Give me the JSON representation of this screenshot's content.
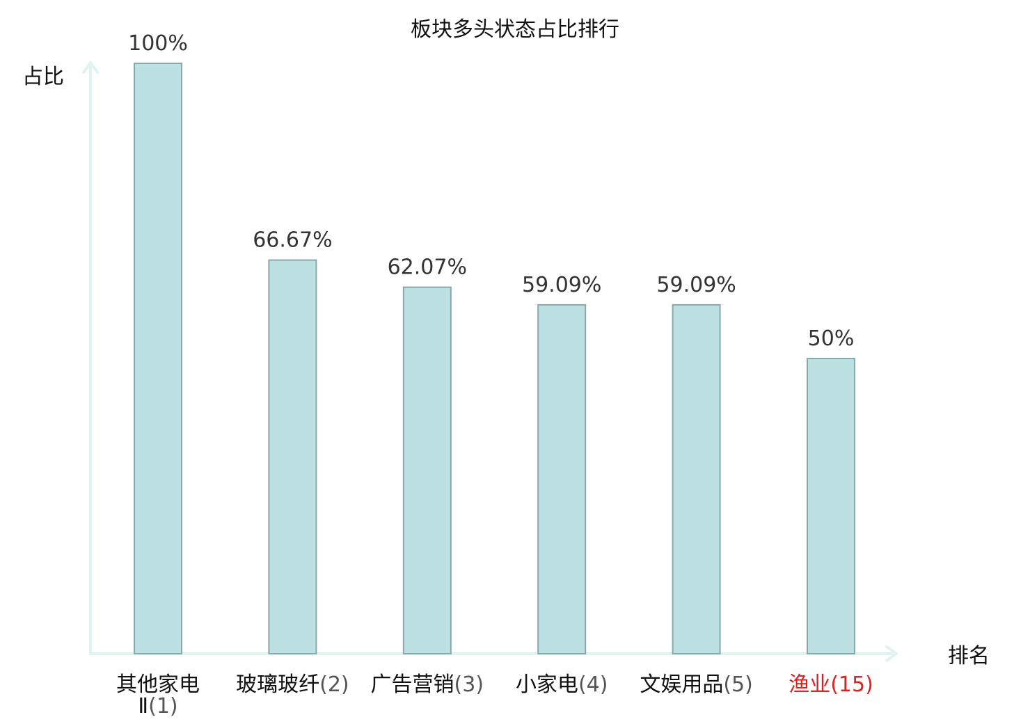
{
  "chart_data": {
    "type": "bar",
    "title": "板块多头状态占比排行",
    "xlabel": "排名",
    "ylabel": "占比",
    "ylim": [
      0,
      100
    ],
    "grid": false,
    "categories": [
      {
        "name_lines": [
          "其他家电",
          "Ⅱ"
        ],
        "rank": "(1)",
        "highlight": false
      },
      {
        "name_lines": [
          "玻璃玻纤"
        ],
        "rank": "(2)",
        "highlight": false
      },
      {
        "name_lines": [
          "广告营销"
        ],
        "rank": "(3)",
        "highlight": false
      },
      {
        "name_lines": [
          "小家电"
        ],
        "rank": "(4)",
        "highlight": false
      },
      {
        "name_lines": [
          "文娱用品"
        ],
        "rank": "(5)",
        "highlight": false
      },
      {
        "name_lines": [
          "渔业"
        ],
        "rank": "(15)",
        "highlight": true
      }
    ],
    "values": [
      100,
      66.67,
      62.07,
      59.09,
      59.09,
      50
    ],
    "value_labels": [
      "100%",
      "66.67%",
      "62.07%",
      "59.09%",
      "59.09%",
      "50%"
    ],
    "colors": {
      "bar_fill": "#bde0e3",
      "bar_stroke": "#8aa8aa",
      "axis": "#dff3f0",
      "highlight": "#e02020"
    }
  }
}
